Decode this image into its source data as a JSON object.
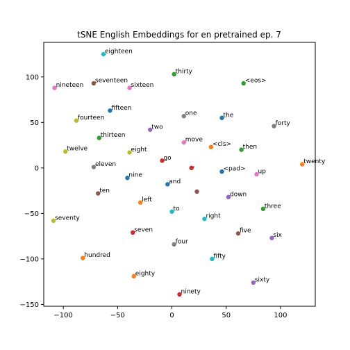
{
  "chart_data": {
    "type": "scatter",
    "title": "tSNE English Embeddings for en pretrained ep. 7",
    "xlabel": "",
    "ylabel": "",
    "xlim": [
      -118,
      132
    ],
    "ylim": [
      -152,
      138
    ],
    "xticks": [
      -100,
      -50,
      0,
      50,
      100
    ],
    "yticks": [
      -150,
      -100,
      -50,
      0,
      50,
      100
    ],
    "grid": false,
    "points": [
      {
        "label": "eighteen",
        "x": -63,
        "y": 125,
        "color": "#17becf"
      },
      {
        "label": "thirty",
        "x": 2,
        "y": 103,
        "color": "#2ca02c"
      },
      {
        "label": "nineteen",
        "x": -108,
        "y": 88,
        "color": "#e377c2"
      },
      {
        "label": "seventeen",
        "x": -72,
        "y": 93,
        "color": "#8c564b"
      },
      {
        "label": "sixteen",
        "x": -39,
        "y": 88,
        "color": "#e377c2"
      },
      {
        "label": "<eos>",
        "x": 66,
        "y": 93,
        "color": "#2ca02c"
      },
      {
        "label": "fifteen",
        "x": -57,
        "y": 63,
        "color": "#1f77b4"
      },
      {
        "label": "one",
        "x": 11,
        "y": 57,
        "color": "#7f7f7f"
      },
      {
        "label": "the",
        "x": 46,
        "y": 55,
        "color": "#1f77b4"
      },
      {
        "label": "forty",
        "x": 94,
        "y": 46,
        "color": "#7f7f7f"
      },
      {
        "label": "fourteen",
        "x": -88,
        "y": 52,
        "color": "#bcbd22"
      },
      {
        "label": "two",
        "x": -20,
        "y": 42,
        "color": "#9467bd"
      },
      {
        "label": "thirteen",
        "x": -67,
        "y": 33,
        "color": "#2ca02c"
      },
      {
        "label": "move",
        "x": 11,
        "y": 28,
        "color": "#e377c2"
      },
      {
        "label": "<cls>",
        "x": 36,
        "y": 23,
        "color": "#ff7f0e"
      },
      {
        "label": "then",
        "x": 64,
        "y": 20,
        "color": "#2ca02c"
      },
      {
        "label": "twelve",
        "x": -98,
        "y": 18,
        "color": "#bcbd22"
      },
      {
        "label": "eight",
        "x": -39,
        "y": 17,
        "color": "#bcbd22"
      },
      {
        "label": "go",
        "x": -9,
        "y": 8,
        "color": "#d62728"
      },
      {
        "label": "twenty",
        "x": 120,
        "y": 4,
        "color": "#ff7f0e"
      },
      {
        "label": "eleven",
        "x": -72,
        "y": 1,
        "color": "#7f7f7f"
      },
      {
        "label": ",",
        "x": 18,
        "y": 0,
        "color": "#d62728"
      },
      {
        "label": "<pad>",
        "x": 46,
        "y": -4,
        "color": "#1f77b4"
      },
      {
        "label": "up",
        "x": 78,
        "y": -7,
        "color": "#e377c2"
      },
      {
        "label": "nine",
        "x": -41,
        "y": -11,
        "color": "#1f77b4"
      },
      {
        "label": "and",
        "x": -4,
        "y": -18,
        "color": "#1f77b4"
      },
      {
        "label": "",
        "x": 23,
        "y": -26,
        "color": "#8c564b"
      },
      {
        "label": "ten",
        "x": -68,
        "y": -28,
        "color": "#8c564b"
      },
      {
        "label": "down",
        "x": 52,
        "y": -32,
        "color": "#9467bd"
      },
      {
        "label": "left",
        "x": -29,
        "y": -38,
        "color": "#ff7f0e"
      },
      {
        "label": "three",
        "x": 84,
        "y": -45,
        "color": "#2ca02c"
      },
      {
        "label": "to",
        "x": 0,
        "y": -48,
        "color": "#17becf"
      },
      {
        "label": "right",
        "x": 30,
        "y": -56,
        "color": "#17becf"
      },
      {
        "label": "seventy",
        "x": -109,
        "y": -58,
        "color": "#bcbd22"
      },
      {
        "label": "seven",
        "x": -36,
        "y": -71,
        "color": "#d62728"
      },
      {
        "label": "five",
        "x": 61,
        "y": -72,
        "color": "#8c564b"
      },
      {
        "label": "six",
        "x": 92,
        "y": -77,
        "color": "#9467bd"
      },
      {
        "label": "four",
        "x": 2,
        "y": -84,
        "color": "#7f7f7f"
      },
      {
        "label": "hundred",
        "x": -82,
        "y": -99,
        "color": "#ff7f0e"
      },
      {
        "label": "fifty",
        "x": 37,
        "y": -100,
        "color": "#17becf"
      },
      {
        "label": "eighty",
        "x": -35,
        "y": -119,
        "color": "#ff7f0e"
      },
      {
        "label": "sixty",
        "x": 75,
        "y": -126,
        "color": "#9467bd"
      },
      {
        "label": "ninety",
        "x": 7,
        "y": -139,
        "color": "#d62728"
      }
    ]
  }
}
